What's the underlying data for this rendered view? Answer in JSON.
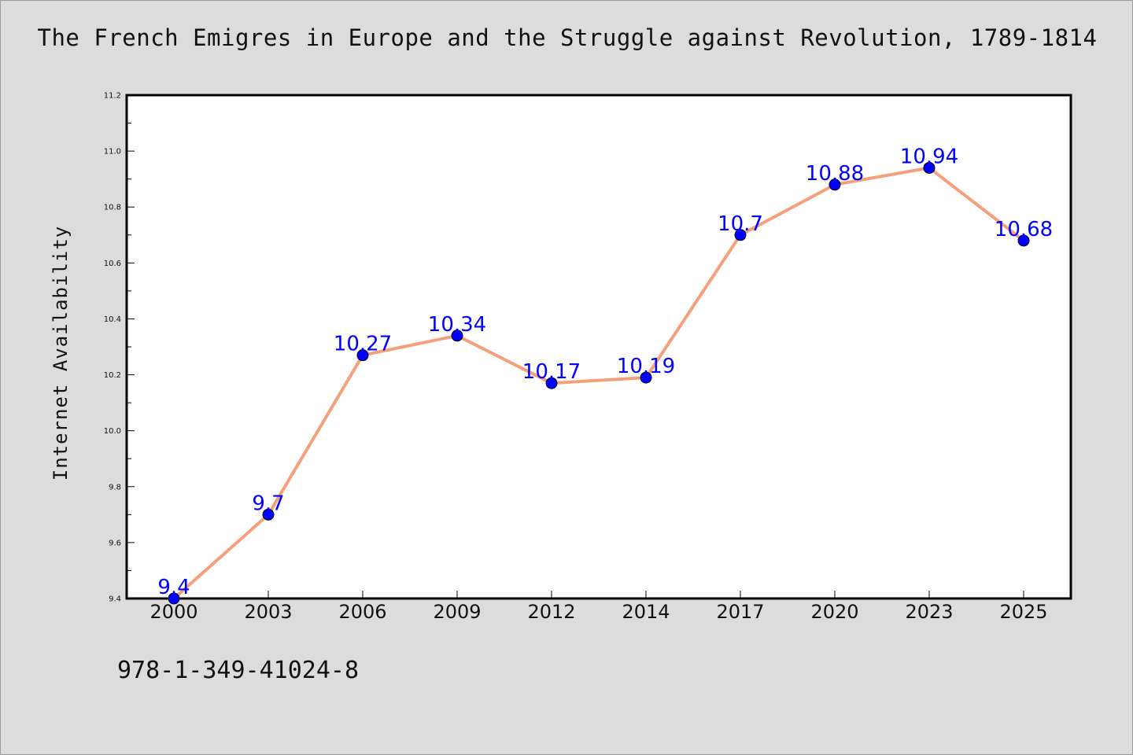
{
  "title": "The French Emigres in Europe and the Struggle against Revolution, 1789-1814",
  "isbn": "978-1-349-41024-8",
  "colors": {
    "background": "#dcdcdc",
    "plot_background": "#ffffff",
    "line": "#f4a07c",
    "marker": "#0000ff",
    "data_label": "#0000ff"
  },
  "chart_data": {
    "type": "line",
    "title": "The French Emigres in Europe and the Struggle against Revolution, 1789-1814",
    "xlabel": "",
    "ylabel": "Internet Availability",
    "categories": [
      "2000",
      "2003",
      "2006",
      "2009",
      "2012",
      "2014",
      "2017",
      "2020",
      "2023",
      "2025"
    ],
    "series": [
      {
        "values": [
          9.4,
          9.7,
          10.27,
          10.34,
          10.17,
          10.19,
          10.7,
          10.88,
          10.94,
          10.68
        ],
        "data_labels": [
          "9.4",
          "9.7",
          "10.27",
          "10.34",
          "10.17",
          "10.19",
          "10.7",
          "10.88",
          "10.94",
          "10.68"
        ]
      }
    ],
    "ylim": [
      9.4,
      11.2
    ],
    "yticks": [
      "9.4",
      "9.6",
      "9.8",
      "10.0",
      "10.2",
      "10.4",
      "10.6",
      "10.8",
      "11.0",
      "11.2"
    ],
    "grid": false,
    "legend": "none"
  }
}
